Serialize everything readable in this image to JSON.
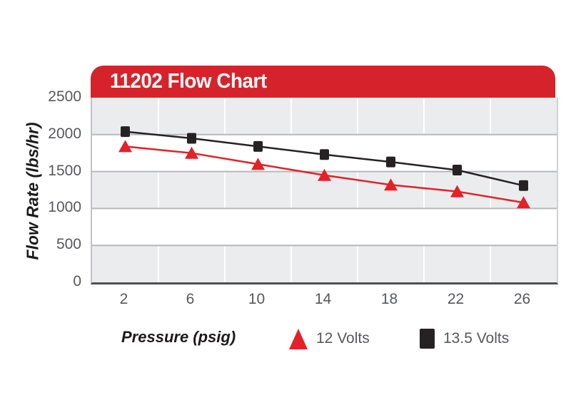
{
  "header": {
    "title": "11202 Flow Chart",
    "bg_color": "#d6232b",
    "text_color": "#ffffff"
  },
  "y_axis": {
    "title": "Flow Rate (lbs/hr)",
    "ticks": [
      "2500",
      "2000",
      "1500",
      "1000",
      "500",
      "0"
    ]
  },
  "x_axis": {
    "title": "Pressure (psig)",
    "ticks": [
      "2",
      "6",
      "10",
      "14",
      "18",
      "22",
      "26"
    ]
  },
  "legend": {
    "items": [
      {
        "label": "12 Volts",
        "marker": "triangle",
        "color": "#e32127"
      },
      {
        "label": "13.5 Volts",
        "marker": "square",
        "color": "#262224"
      }
    ]
  },
  "colors": {
    "band_gray": "#ebecee",
    "band_white": "#ffffff",
    "h_gridline": "#b6b8ba",
    "v_gridline": "#ffffff",
    "axis_line": "#4f5052",
    "tick_text": "#57585b",
    "series_red": "#e32127",
    "series_black": "#262224"
  },
  "chart_data": {
    "type": "line",
    "title": "11202 Flow Chart",
    "xlabel": "Pressure (psig)",
    "ylabel": "Flow Rate (lbs/hr)",
    "x": [
      2,
      6,
      10,
      14,
      18,
      22,
      26
    ],
    "series": [
      {
        "name": "13.5 Volts",
        "marker": "square",
        "color": "#262224",
        "values": [
          2040,
          1950,
          1840,
          1730,
          1630,
          1520,
          1310
        ]
      },
      {
        "name": "12 Volts",
        "marker": "triangle",
        "color": "#e32127",
        "values": [
          1840,
          1750,
          1600,
          1450,
          1320,
          1230,
          1080
        ]
      }
    ],
    "ylim": [
      0,
      2500
    ],
    "ytick_step": 500,
    "grid": "horizontal-bands",
    "legend_position": "bottom"
  }
}
